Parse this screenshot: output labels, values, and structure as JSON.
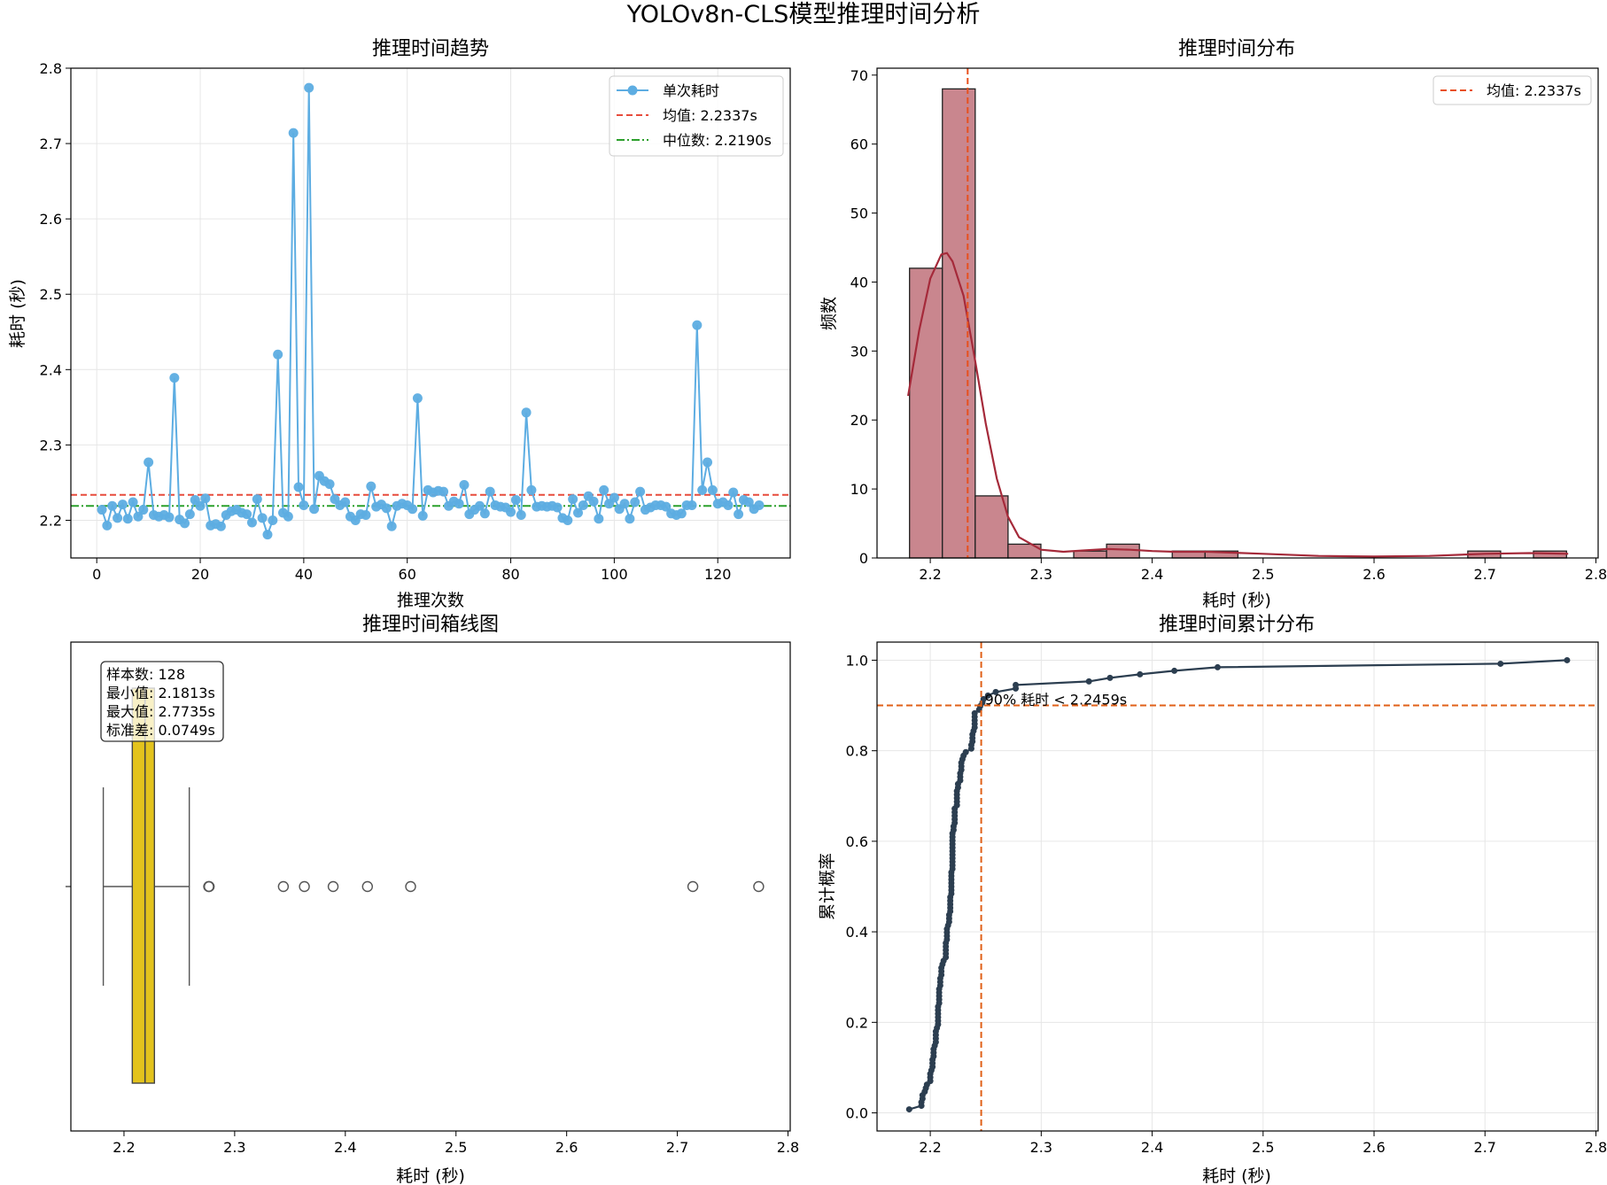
{
  "figure": {
    "title": "YOLOv8n-CLS模型推理时间分析"
  },
  "colors": {
    "trend_line": "#5dade2",
    "mean_line": "#e74c3c",
    "median_line": "#2ca02c",
    "hist_bar": "#c9868e",
    "kde_line": "#a52a3a",
    "hist_mean_line": "#e8501e",
    "box_fill": "#e3c31d",
    "cdf_line": "#2c3e50",
    "p90_line": "#e06018",
    "grid": "#e6e6e6"
  },
  "chart_data": [
    {
      "id": "trend",
      "type": "line",
      "title": "推理时间趋势",
      "xlabel": "推理次数",
      "ylabel": "耗时 (秒)",
      "xlim": [
        -5,
        134
      ],
      "ylim": [
        2.15,
        2.8
      ],
      "xticks": [
        "0",
        "20",
        "40",
        "60",
        "80",
        "100",
        "120"
      ],
      "yticks": [
        "2.2",
        "2.3",
        "2.4",
        "2.5",
        "2.6",
        "2.7",
        "2.8"
      ],
      "grid": true,
      "legend_position": "top-right",
      "series": [
        {
          "name": "单次耗时",
          "marker": "circle",
          "x": [
            1,
            2,
            3,
            4,
            5,
            6,
            7,
            8,
            9,
            10,
            11,
            12,
            13,
            14,
            15,
            16,
            17,
            18,
            19,
            20,
            21,
            22,
            23,
            24,
            25,
            26,
            27,
            28,
            29,
            30,
            31,
            32,
            33,
            34,
            35,
            36,
            37,
            38,
            39,
            40,
            41,
            42,
            43,
            44,
            45,
            46,
            47,
            48,
            49,
            50,
            51,
            52,
            53,
            54,
            55,
            56,
            57,
            58,
            59,
            60,
            61,
            62,
            63,
            64,
            65,
            66,
            67,
            68,
            69,
            70,
            71,
            72,
            73,
            74,
            75,
            76,
            77,
            78,
            79,
            80,
            81,
            82,
            83,
            84,
            85,
            86,
            87,
            88,
            89,
            90,
            91,
            92,
            93,
            94,
            95,
            96,
            97,
            98,
            99,
            100,
            101,
            102,
            103,
            104,
            105,
            106,
            107,
            108,
            109,
            110,
            111,
            112,
            113,
            114,
            115,
            116,
            117,
            118,
            119,
            120,
            121,
            122,
            123,
            124,
            125,
            126,
            127,
            128
          ],
          "y": [
            2.214,
            2.193,
            2.219,
            2.203,
            2.221,
            2.202,
            2.224,
            2.205,
            2.214,
            2.277,
            2.207,
            2.205,
            2.207,
            2.204,
            2.389,
            2.201,
            2.196,
            2.208,
            2.227,
            2.219,
            2.229,
            2.193,
            2.195,
            2.192,
            2.207,
            2.212,
            2.214,
            2.21,
            2.208,
            2.197,
            2.228,
            2.203,
            2.181,
            2.2,
            2.42,
            2.21,
            2.205,
            2.714,
            2.244,
            2.22,
            2.774,
            2.215,
            2.259,
            2.252,
            2.248,
            2.228,
            2.22,
            2.224,
            2.205,
            2.2,
            2.208,
            2.207,
            2.245,
            2.218,
            2.221,
            2.216,
            2.192,
            2.219,
            2.222,
            2.22,
            2.215,
            2.362,
            2.206,
            2.24,
            2.237,
            2.239,
            2.238,
            2.219,
            2.225,
            2.222,
            2.247,
            2.208,
            2.214,
            2.219,
            2.209,
            2.238,
            2.22,
            2.218,
            2.217,
            2.211,
            2.227,
            2.207,
            2.343,
            2.24,
            2.218,
            2.219,
            2.218,
            2.219,
            2.217,
            2.203,
            2.2,
            2.228,
            2.21,
            2.22,
            2.232,
            2.225,
            2.202,
            2.24,
            2.222,
            2.23,
            2.215,
            2.222,
            2.202,
            2.224,
            2.238,
            2.214,
            2.217,
            2.22,
            2.22,
            2.218,
            2.209,
            2.207,
            2.209,
            2.22,
            2.22,
            2.459,
            2.24,
            2.277,
            2.24,
            2.222,
            2.224,
            2.22,
            2.237,
            2.208,
            2.227,
            2.224,
            2.215,
            2.22
          ]
        },
        {
          "name": "均值: 2.2337s",
          "type": "hline",
          "y": 2.2337,
          "style": "dashed"
        },
        {
          "name": "中位数: 2.2190s",
          "type": "hline",
          "y": 2.219,
          "style": "dashdot"
        }
      ]
    },
    {
      "id": "histogram",
      "type": "bar",
      "title": "推理时间分布",
      "xlabel": "耗时 (秒)",
      "ylabel": "频数",
      "xlim": [
        2.152,
        2.802
      ],
      "ylim": [
        0,
        71
      ],
      "xticks": [
        "2.2",
        "2.3",
        "2.4",
        "2.5",
        "2.6",
        "2.7",
        "2.8"
      ],
      "yticks": [
        "0",
        "10",
        "20",
        "30",
        "40",
        "50",
        "60",
        "70"
      ],
      "grid": false,
      "legend_position": "top-right",
      "bin_edges": [
        2.1813,
        2.2109,
        2.2405,
        2.2701,
        2.2997,
        2.3293,
        2.3589,
        2.3885,
        2.4181,
        2.4477,
        2.4773,
        2.5069,
        2.5365,
        2.5661,
        2.5957,
        2.6253,
        2.6549,
        2.6845,
        2.7141,
        2.7437,
        2.7735
      ],
      "values": [
        42,
        68,
        9,
        2,
        0,
        1,
        2,
        0,
        1,
        1,
        0,
        0,
        0,
        0,
        0,
        0,
        0,
        1,
        0,
        1
      ],
      "kde": {
        "x": [
          2.18,
          2.19,
          2.2,
          2.21,
          2.215,
          2.22,
          2.23,
          2.24,
          2.25,
          2.26,
          2.27,
          2.28,
          2.3,
          2.32,
          2.34,
          2.36,
          2.38,
          2.4,
          2.42,
          2.45,
          2.5,
          2.55,
          2.6,
          2.65,
          2.7,
          2.74,
          2.775
        ],
        "y": [
          23.5,
          33,
          40.5,
          44,
          44.2,
          43,
          38,
          29,
          19.5,
          11.5,
          6,
          3,
          1.2,
          0.9,
          1.1,
          1.3,
          1.2,
          1.0,
          0.9,
          0.9,
          0.6,
          0.3,
          0.2,
          0.3,
          0.6,
          0.7,
          0.6
        ]
      },
      "series": [
        {
          "name": "均值: 2.2337s",
          "type": "vline",
          "x": 2.2337,
          "style": "dashed"
        }
      ]
    },
    {
      "id": "boxplot",
      "type": "box",
      "title": "推理时间箱线图",
      "xlabel": "耗时 (秒)",
      "xlim": [
        2.152,
        2.802
      ],
      "xticks": [
        "2.2",
        "2.3",
        "2.4",
        "2.5",
        "2.6",
        "2.7",
        "2.8"
      ],
      "whisker_low": 2.1813,
      "q1": 2.2075,
      "median": 2.219,
      "q3": 2.2275,
      "whisker_high": 2.259,
      "outliers": [
        2.2765,
        2.277,
        2.344,
        2.363,
        2.389,
        2.42,
        2.459,
        2.714,
        2.7735
      ],
      "stats_lines": [
        "样本数: 128",
        "最小值: 2.1813s",
        "最大值: 2.7735s",
        "标准差: 0.0749s"
      ]
    },
    {
      "id": "cdf",
      "type": "line",
      "title": "推理时间累计分布",
      "xlabel": "耗时 (秒)",
      "ylabel": "累计概率",
      "xlim": [
        2.152,
        2.802
      ],
      "ylim": [
        -0.04,
        1.04
      ],
      "xticks": [
        "2.2",
        "2.3",
        "2.4",
        "2.5",
        "2.6",
        "2.7",
        "2.8"
      ],
      "yticks": [
        "0.0",
        "0.2",
        "0.4",
        "0.6",
        "0.8",
        "1.0"
      ],
      "grid": true,
      "annotation": "90% 耗时 < 2.2459s",
      "p90": {
        "x": 2.2459,
        "y": 0.9
      },
      "series": [
        {
          "type": "ecdf",
          "marker": "circle"
        }
      ]
    }
  ]
}
